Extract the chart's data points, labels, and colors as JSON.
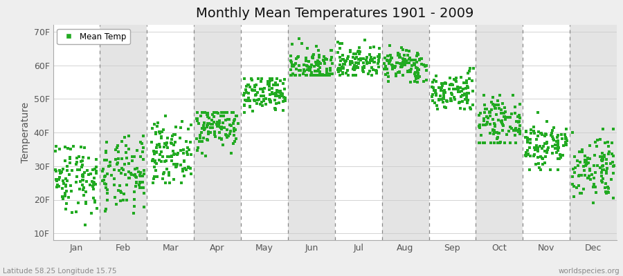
{
  "title": "Monthly Mean Temperatures 1901 - 2009",
  "ylabel": "Temperature",
  "xlabel_labels": [
    "Jan",
    "Feb",
    "Mar",
    "Apr",
    "May",
    "Jun",
    "Jul",
    "Aug",
    "Sep",
    "Oct",
    "Nov",
    "Dec"
  ],
  "ytick_labels": [
    "10F",
    "20F",
    "30F",
    "40F",
    "50F",
    "60F",
    "70F"
  ],
  "ytick_values": [
    10,
    20,
    30,
    40,
    50,
    60,
    70
  ],
  "ylim": [
    8,
    72
  ],
  "bg_color": "#eeeeee",
  "dot_color": "#22aa22",
  "dot_size": 7,
  "legend_label": "Mean Temp",
  "footer_left": "Latitude 58.25 Longitude 15.75",
  "footer_right": "worldspecies.org",
  "month_configs": [
    [
      1,
      27,
      5.5,
      10,
      36
    ],
    [
      2,
      27,
      5.5,
      11,
      39
    ],
    [
      3,
      34,
      4.5,
      25,
      45
    ],
    [
      4,
      42,
      3.5,
      33,
      46
    ],
    [
      5,
      51,
      3.0,
      45,
      56
    ],
    [
      6,
      59,
      3.0,
      57,
      69
    ],
    [
      7,
      61,
      2.5,
      57,
      68
    ],
    [
      8,
      60,
      2.5,
      55,
      66
    ],
    [
      9,
      52,
      3.0,
      47,
      59
    ],
    [
      10,
      43,
      3.5,
      37,
      51
    ],
    [
      11,
      36,
      4.0,
      29,
      46
    ],
    [
      12,
      30,
      5.0,
      19,
      41
    ]
  ]
}
